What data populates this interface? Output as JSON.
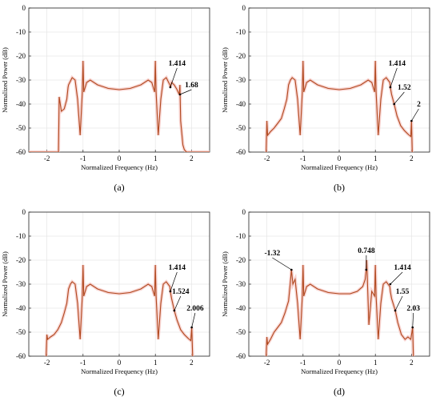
{
  "chart_data": [
    {
      "type": "line",
      "caption": "(a)",
      "xlabel": "Normalized Frequency (Hz)",
      "ylabel": "Normalized Power (dB)",
      "xlim": [
        -2.5,
        2.5
      ],
      "ylim": [
        -60,
        0
      ],
      "xticks": [
        -2,
        -1,
        0,
        1,
        2
      ],
      "yticks": [
        0,
        -10,
        -20,
        -30,
        -40,
        -50,
        -60
      ],
      "grid": true,
      "x": [
        -2.5,
        -1.68,
        -1.66,
        -1.6,
        -1.52,
        -1.45,
        -1.414,
        -1.4,
        -1.3,
        -1.22,
        -1.15,
        -1.08,
        -1.02,
        -1.0,
        -0.98,
        -0.9,
        -0.8,
        -0.6,
        -0.3,
        0,
        0.3,
        0.6,
        0.8,
        0.9,
        0.98,
        1.0,
        1.02,
        1.08,
        1.15,
        1.22,
        1.3,
        1.4,
        1.414,
        1.45,
        1.52,
        1.6,
        1.66,
        1.68,
        1.7,
        1.76,
        1.8,
        1.86,
        2.5
      ],
      "y": [
        -60,
        -60,
        -37,
        -43,
        -42,
        -38,
        -33,
        -32,
        -29,
        -30,
        -38,
        -53,
        -35,
        -22,
        -35,
        -31,
        -30,
        -32,
        -33.5,
        -34,
        -33.5,
        -32,
        -30,
        -31,
        -35,
        -22,
        -35,
        -53,
        -38,
        -30,
        -29,
        -32,
        -33,
        -31,
        -32,
        -34,
        -36,
        -32,
        -47,
        -57,
        -59,
        -60,
        -60
      ],
      "annotations": [
        {
          "text": "1.414",
          "x": 1.414,
          "y": -33,
          "label_x": 1.6,
          "label_y": -24
        },
        {
          "text": "1.68",
          "x": 1.68,
          "y": -36,
          "label_x": 2.0,
          "label_y": -33
        }
      ]
    },
    {
      "type": "line",
      "caption": "(b)",
      "xlabel": "Normalized Frequency (Hz)",
      "ylabel": "Normalized Power (dB)",
      "xlim": [
        -2.5,
        2.5
      ],
      "ylim": [
        -60,
        0
      ],
      "xticks": [
        -2,
        -1,
        0,
        1,
        2
      ],
      "yticks": [
        0,
        -10,
        -20,
        -30,
        -40,
        -50,
        -60
      ],
      "grid": true,
      "x": [
        -2.02,
        -2.0,
        -1.98,
        -1.9,
        -1.8,
        -1.7,
        -1.6,
        -1.52,
        -1.45,
        -1.4,
        -1.35,
        -1.3,
        -1.22,
        -1.15,
        -1.08,
        -1.02,
        -1.0,
        -0.98,
        -0.9,
        -0.8,
        -0.6,
        -0.3,
        0,
        0.3,
        0.6,
        0.8,
        0.9,
        0.98,
        1.0,
        1.02,
        1.08,
        1.15,
        1.22,
        1.3,
        1.4,
        1.414,
        1.45,
        1.52,
        1.6,
        1.7,
        1.8,
        1.9,
        1.98,
        2.0,
        2.02
      ],
      "y": [
        -60,
        -47,
        -53,
        -51.5,
        -50,
        -48,
        -46,
        -42,
        -38,
        -32,
        -30,
        -29,
        -30,
        -38,
        -53,
        -35,
        -22,
        -35,
        -31,
        -30,
        -32,
        -33.5,
        -34,
        -33.5,
        -32,
        -30,
        -31,
        -35,
        -22,
        -35,
        -53,
        -38,
        -30,
        -29,
        -31,
        -33,
        -36,
        -40,
        -45,
        -49,
        -51,
        -52.5,
        -53.5,
        -47,
        -60
      ],
      "annotations": [
        {
          "text": "1.414",
          "x": 1.414,
          "y": -33,
          "label_x": 1.6,
          "label_y": -24
        },
        {
          "text": "1.52",
          "x": 1.52,
          "y": -40,
          "label_x": 1.8,
          "label_y": -34
        },
        {
          "text": "2",
          "x": 2.0,
          "y": -47,
          "label_x": 2.2,
          "label_y": -41
        }
      ]
    },
    {
      "type": "line",
      "caption": "(c)",
      "xlabel": "Normalized Frequency (Hz)",
      "ylabel": "Normalized Power (dB)",
      "xlim": [
        -2.5,
        2.5
      ],
      "ylim": [
        -60,
        0
      ],
      "xticks": [
        -2,
        -1,
        0,
        1,
        2
      ],
      "yticks": [
        0,
        -10,
        -20,
        -30,
        -40,
        -50,
        -60
      ],
      "grid": true,
      "x": [
        -2.02,
        -2.0,
        -1.98,
        -1.9,
        -1.8,
        -1.7,
        -1.6,
        -1.52,
        -1.45,
        -1.4,
        -1.35,
        -1.3,
        -1.22,
        -1.15,
        -1.08,
        -1.02,
        -1.0,
        -0.98,
        -0.9,
        -0.8,
        -0.6,
        -0.3,
        0,
        0.3,
        0.6,
        0.8,
        0.9,
        0.98,
        1.0,
        1.02,
        1.08,
        1.15,
        1.22,
        1.3,
        1.4,
        1.414,
        1.45,
        1.524,
        1.6,
        1.7,
        1.8,
        1.9,
        1.98,
        2.006,
        2.03
      ],
      "y": [
        -60,
        -51,
        -53,
        -52,
        -51,
        -49,
        -46,
        -42,
        -38,
        -32,
        -30,
        -29,
        -30,
        -38,
        -53,
        -35,
        -22,
        -35,
        -31,
        -30,
        -32,
        -33.5,
        -34,
        -33.5,
        -32,
        -30,
        -31,
        -35,
        -22,
        -35,
        -53,
        -38,
        -30,
        -29,
        -31,
        -33,
        -36,
        -41,
        -45,
        -49,
        -51,
        -52.5,
        -53.5,
        -48,
        -60
      ],
      "annotations": [
        {
          "text": "1.414",
          "x": 1.414,
          "y": -33,
          "label_x": 1.6,
          "label_y": -24
        },
        {
          "text": "1.524",
          "x": 1.524,
          "y": -41,
          "label_x": 1.7,
          "label_y": -34
        },
        {
          "text": "2.006",
          "x": 2.006,
          "y": -48,
          "label_x": 2.1,
          "label_y": -41
        }
      ]
    },
    {
      "type": "line",
      "caption": "(d)",
      "xlabel": "Normalized Frequency (Hz)",
      "ylabel": "Normalized Power (dB)",
      "xlim": [
        -2.5,
        2.5
      ],
      "ylim": [
        -60,
        0
      ],
      "xticks": [
        -2,
        -1,
        0,
        1,
        2
      ],
      "yticks": [
        0,
        -10,
        -20,
        -30,
        -40,
        -50,
        -60
      ],
      "grid": true,
      "x": [
        -2.02,
        -2.0,
        -1.98,
        -1.9,
        -1.8,
        -1.7,
        -1.6,
        -1.5,
        -1.4,
        -1.35,
        -1.32,
        -1.28,
        -1.22,
        -1.15,
        -1.08,
        -1.02,
        -1.0,
        -0.98,
        -0.9,
        -0.8,
        -0.6,
        -0.3,
        0,
        0.3,
        0.5,
        0.65,
        0.72,
        0.748,
        0.76,
        0.82,
        0.9,
        0.98,
        1.0,
        1.02,
        1.08,
        1.15,
        1.22,
        1.3,
        1.4,
        1.414,
        1.45,
        1.55,
        1.62,
        1.72,
        1.82,
        1.9,
        1.98,
        2.03,
        2.05
      ],
      "y": [
        -60,
        -52,
        -55,
        -53,
        -50,
        -48,
        -46,
        -42,
        -37,
        -29,
        -24,
        -30,
        -28,
        -38,
        -53,
        -35,
        -22,
        -35,
        -31,
        -30,
        -32,
        -33.5,
        -34,
        -34,
        -33,
        -31,
        -28,
        -24,
        -20,
        -47,
        -33,
        -35,
        -22,
        -35,
        -53,
        -38,
        -30,
        -29,
        -31,
        -33,
        -36,
        -41,
        -46,
        -51,
        -53,
        -52,
        -53,
        -48,
        -60
      ],
      "annotations": [
        {
          "text": "-1.32",
          "x": -1.32,
          "y": -24,
          "label_x": -1.85,
          "label_y": -18
        },
        {
          "text": "0.748",
          "x": 0.748,
          "y": -24,
          "label_x": 0.75,
          "label_y": -17
        },
        {
          "text": "1.414",
          "x": 1.414,
          "y": -30,
          "label_x": 1.75,
          "label_y": -24
        },
        {
          "text": "1.55",
          "x": 1.55,
          "y": -41,
          "label_x": 1.75,
          "label_y": -34
        },
        {
          "text": "2.03",
          "x": 2.03,
          "y": -48,
          "label_x": 2.05,
          "label_y": -41
        }
      ]
    }
  ]
}
